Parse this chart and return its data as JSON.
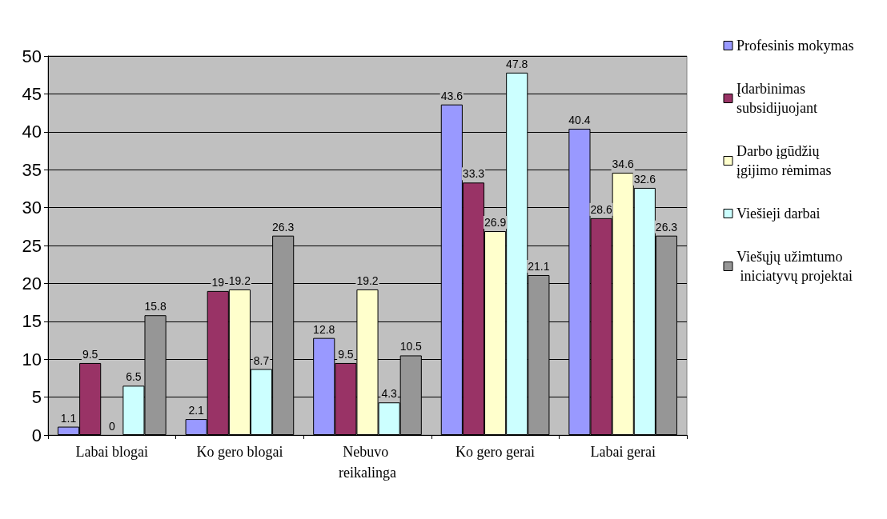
{
  "chart_data": {
    "type": "bar",
    "categories": [
      "Labai blogai",
      "Ko gero blogai",
      "Nebuvo reikalinga",
      "Ko gero gerai",
      "Labai gerai"
    ],
    "series": [
      {
        "name": "Profesinis mokymas",
        "color": "#9999ff",
        "values": [
          1.1,
          2.1,
          12.8,
          43.6,
          40.4
        ]
      },
      {
        "name": "Įdarbinimas subsidijuojant",
        "color": "#993366",
        "values": [
          9.5,
          19,
          9.5,
          33.3,
          28.6
        ]
      },
      {
        "name": "Darbo įgūdžių įgijimo rėmimas",
        "color": "#ffffcc",
        "values": [
          0,
          19.2,
          19.2,
          26.9,
          34.6
        ]
      },
      {
        "name": "Viešieji darbai",
        "color": "#ccffff",
        "values": [
          6.5,
          8.7,
          4.3,
          47.8,
          32.6
        ]
      },
      {
        "name": "Viešųjų užimtumo iniciatyvų projektai",
        "color": "#969696",
        "values": [
          15.8,
          26.3,
          10.5,
          21.1,
          26.3
        ]
      }
    ],
    "ylim": [
      0,
      50
    ],
    "yticks": [
      0,
      5,
      10,
      15,
      20,
      25,
      30,
      35,
      40,
      45,
      50
    ],
    "grid": "y",
    "legend": "right",
    "data_labels": true
  }
}
